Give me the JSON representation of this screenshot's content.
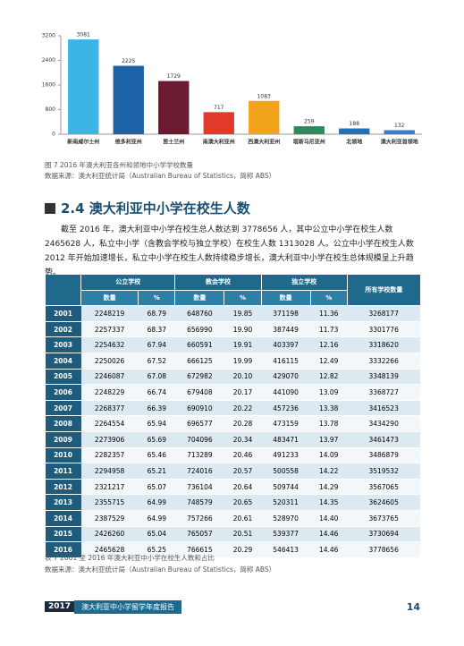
{
  "chart_data": {
    "type": "bar",
    "categories": [
      "新南威尔士州",
      "维多利亚州",
      "昆士兰州",
      "南澳大利亚州",
      "西澳大利亚州",
      "塔斯马尼亚州",
      "北领地",
      "澳大利亚首领地"
    ],
    "values": [
      3081,
      2225,
      1729,
      717,
      1083,
      259,
      188,
      132
    ],
    "colors": [
      "#3cb4e5",
      "#1b62a8",
      "#6b1a2f",
      "#e2392d",
      "#f2a31c",
      "#2c8a5c",
      "#1c72bf",
      "#3b7dc4"
    ],
    "ylim": [
      0,
      3200
    ],
    "yticks": [
      0,
      800,
      1600,
      2400,
      3200
    ]
  },
  "figure_caption": "图 7 2016 年澳大利亚各州和领地中小学学校数量",
  "figure_source": "数据来源：澳大利亚统计局（Australian Bureau of Statistics，简称 ABS）",
  "section_title": "2.4 澳大利亚中小学在校生人数",
  "paragraph": "截至 2016 年，澳大利亚中小学在校生总人数达到 3778656 人，其中公立中小学在校生人数 2465628 人，私立中小学（含教会学校与独立学校）在校生人数 1313028 人。公立中小学在校生人数 2012 年开始加速增长，私立中小学在校生人数持续稳步增长，澳大利亚中小学在校生总体规模呈上升趋势。",
  "table": {
    "groups": [
      "公立学校",
      "教会学校",
      "独立学校",
      "所有学校数量"
    ],
    "subheaders": [
      "数量",
      "%"
    ],
    "rows": [
      [
        "2001",
        "2248219",
        "68.79",
        "648760",
        "19.85",
        "371198",
        "11.36",
        "3268177"
      ],
      [
        "2002",
        "2257337",
        "68.37",
        "656990",
        "19.90",
        "387449",
        "11.73",
        "3301776"
      ],
      [
        "2003",
        "2254632",
        "67.94",
        "660591",
        "19.91",
        "403397",
        "12.16",
        "3318620"
      ],
      [
        "2004",
        "2250026",
        "67.52",
        "666125",
        "19.99",
        "416115",
        "12.49",
        "3332266"
      ],
      [
        "2005",
        "2246087",
        "67.08",
        "672982",
        "20.10",
        "429070",
        "12.82",
        "3348139"
      ],
      [
        "2006",
        "2248229",
        "66.74",
        "679408",
        "20.17",
        "441090",
        "13.09",
        "3368727"
      ],
      [
        "2007",
        "2268377",
        "66.39",
        "690910",
        "20.22",
        "457236",
        "13.38",
        "3416523"
      ],
      [
        "2008",
        "2264554",
        "65.94",
        "696577",
        "20.28",
        "473159",
        "13.78",
        "3434290"
      ],
      [
        "2009",
        "2273906",
        "65.69",
        "704096",
        "20.34",
        "483471",
        "13.97",
        "3461473"
      ],
      [
        "2010",
        "2282357",
        "65.46",
        "713289",
        "20.46",
        "491233",
        "14.09",
        "3486879"
      ],
      [
        "2011",
        "2294958",
        "65.21",
        "724016",
        "20.57",
        "500558",
        "14.22",
        "3519532"
      ],
      [
        "2012",
        "2321217",
        "65.07",
        "736104",
        "20.64",
        "509744",
        "14.29",
        "3567065"
      ],
      [
        "2013",
        "2355715",
        "64.99",
        "748579",
        "20.65",
        "520311",
        "14.35",
        "3624605"
      ],
      [
        "2014",
        "2387529",
        "64.99",
        "757266",
        "20.61",
        "528970",
        "14.40",
        "3673765"
      ],
      [
        "2015",
        "2426260",
        "65.04",
        "765057",
        "20.51",
        "539377",
        "14.46",
        "3730694"
      ],
      [
        "2016",
        "2465628",
        "65.25",
        "766615",
        "20.29",
        "546413",
        "14.46",
        "3778656"
      ]
    ]
  },
  "table_caption": "表 7 2001 至 2016 年澳大利亚中小学在校生人数和占比",
  "table_source": "数据来源：澳大利亚统计局（Australian Bureau of Statistics，简称 ABS）",
  "footer": {
    "year": "2017",
    "title": "澳大利亚中小学留学年度报告",
    "page": "14"
  }
}
